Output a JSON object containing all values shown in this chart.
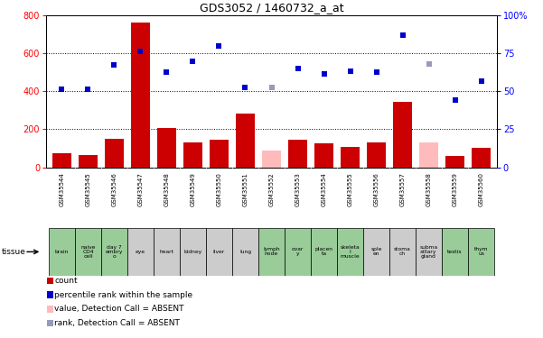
{
  "title": "GDS3052 / 1460732_a_at",
  "samples": [
    "GSM35544",
    "GSM35545",
    "GSM35546",
    "GSM35547",
    "GSM35548",
    "GSM35549",
    "GSM35550",
    "GSM35551",
    "GSM35552",
    "GSM35553",
    "GSM35554",
    "GSM35555",
    "GSM35556",
    "GSM35557",
    "GSM35558",
    "GSM35559",
    "GSM35560"
  ],
  "tissues": [
    "brain",
    "naive\nCD4\ncell",
    "day 7\nembry\no",
    "eye",
    "heart",
    "kidney",
    "liver",
    "lung",
    "lymph\nnode",
    "ovar\ny",
    "placen\nta",
    "skeleta\nl\nmuscle",
    "sple\nen",
    "stoma\nch",
    "subma\nxillary\ngland",
    "testis",
    "thym\nus"
  ],
  "tissue_green_indices": [
    0,
    1,
    2,
    8,
    9,
    10,
    11,
    15,
    16
  ],
  "bar_values": [
    75,
    65,
    148,
    760,
    205,
    130,
    143,
    282,
    88,
    143,
    128,
    107,
    133,
    345,
    133,
    58,
    102
  ],
  "bar_absent": [
    false,
    false,
    false,
    false,
    false,
    false,
    false,
    false,
    true,
    false,
    false,
    false,
    false,
    false,
    true,
    false,
    false
  ],
  "dot_values": [
    410,
    410,
    537,
    608,
    503,
    560,
    640,
    420,
    420,
    520,
    490,
    505,
    503,
    695,
    545,
    355,
    453
  ],
  "dot_absent": [
    false,
    false,
    false,
    false,
    false,
    false,
    false,
    false,
    true,
    false,
    false,
    false,
    false,
    false,
    true,
    false,
    false
  ],
  "ylim_left": [
    0,
    800
  ],
  "ylim_right": [
    0,
    100
  ],
  "yticks_left": [
    0,
    200,
    400,
    600,
    800
  ],
  "yticks_right": [
    0,
    25,
    50,
    75,
    100
  ],
  "bar_color": "#cc0000",
  "bar_absent_color": "#ffbbbb",
  "dot_color": "#0000cc",
  "dot_absent_color": "#9999bb",
  "sample_bg_color": "#cccccc",
  "tissue_normal_color": "#cccccc",
  "tissue_green_color": "#99cc99",
  "legend": [
    {
      "label": "count",
      "color": "#cc0000"
    },
    {
      "label": "percentile rank within the sample",
      "color": "#0000cc"
    },
    {
      "label": "value, Detection Call = ABSENT",
      "color": "#ffbbbb"
    },
    {
      "label": "rank, Detection Call = ABSENT",
      "color": "#9999bb"
    }
  ]
}
